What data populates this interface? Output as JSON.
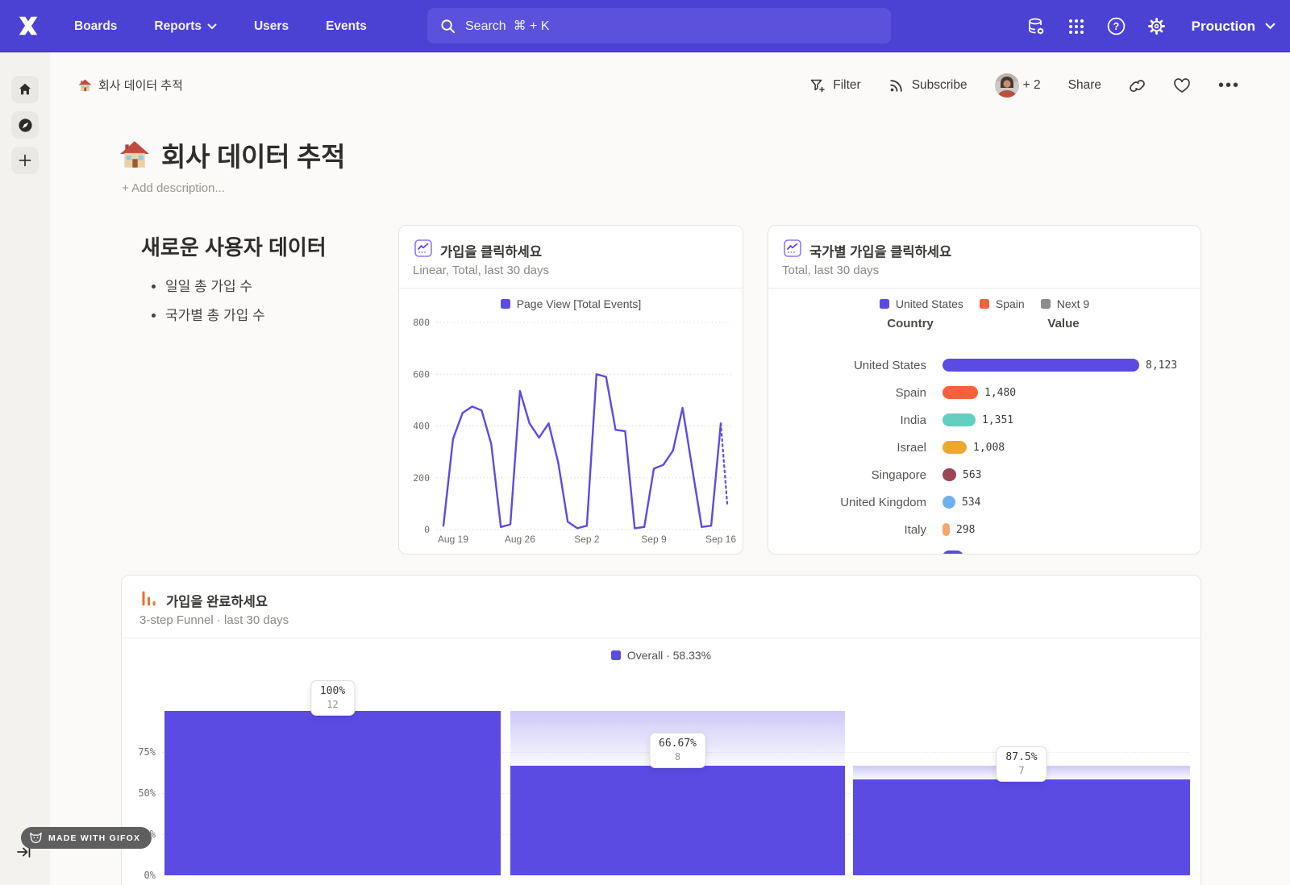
{
  "navbar": {
    "items": [
      "Boards",
      "Reports",
      "Users",
      "Events"
    ],
    "search_placeholder": "Search  ⌘ + K",
    "project": "Prouction"
  },
  "toolbar": {
    "breadcrumb": "회사 데이터 추적",
    "filter_label": "Filter",
    "subscribe_label": "Subscribe",
    "avatar_more": "+ 2",
    "share_label": "Share"
  },
  "page": {
    "title": "회사 데이터 추적",
    "add_description": "+ Add description..."
  },
  "text_widget": {
    "heading": "새로운 사용자 데이터",
    "bullets": [
      "일일 총 가입 수",
      "국가별 총 가입 수"
    ]
  },
  "chart_data": [
    {
      "type": "line",
      "title": "가입을 클릭하세요",
      "subtitle": "Linear, Total, last 30 days",
      "legend": [
        {
          "label": "Page View [Total Events]",
          "color": "#5C4BE3"
        }
      ],
      "x": [
        "Aug 18",
        "Aug 19",
        "Aug 20",
        "Aug 21",
        "Aug 22",
        "Aug 23",
        "Aug 24",
        "Aug 25",
        "Aug 26",
        "Aug 27",
        "Aug 28",
        "Aug 29",
        "Aug 30",
        "Aug 31",
        "Sep 1",
        "Sep 2",
        "Sep 3",
        "Sep 4",
        "Sep 5",
        "Sep 6",
        "Sep 7",
        "Sep 8",
        "Sep 9",
        "Sep 10",
        "Sep 11",
        "Sep 12",
        "Sep 13",
        "Sep 14",
        "Sep 15",
        "Sep 16"
      ],
      "values": [
        15,
        350,
        450,
        475,
        460,
        330,
        10,
        20,
        535,
        410,
        355,
        410,
        260,
        30,
        5,
        15,
        600,
        590,
        385,
        380,
        5,
        10,
        235,
        250,
        305,
        470,
        240,
        10,
        15,
        410
      ],
      "incomplete_tail_end": 100,
      "x_ticks": {
        "indices": [
          1,
          8,
          15,
          22,
          29
        ],
        "labels": [
          "Aug 19",
          "Aug 26",
          "Sep 2",
          "Sep 9",
          "Sep 16"
        ]
      },
      "y_ticks": [
        0,
        200,
        400,
        600,
        800
      ],
      "ylim": [
        0,
        800
      ],
      "grid": "horizontal-dotted",
      "legend_position": "top"
    },
    {
      "type": "bar",
      "title": "국가별 가입을 클릭하세요",
      "subtitle": "Total, last 30 days",
      "legend": [
        {
          "label": "United States",
          "color": "#5C4BE3"
        },
        {
          "label": "Spain",
          "color": "#F6603A"
        },
        {
          "label": "Next 9",
          "color": "#8C8C8C"
        }
      ],
      "columns": [
        "Country",
        "Value"
      ],
      "rows": [
        {
          "country": "United States",
          "value": 8123,
          "display": "8,123",
          "color": "#5C4BE3"
        },
        {
          "country": "Spain",
          "value": 1480,
          "display": "1,480",
          "color": "#F6603A"
        },
        {
          "country": "India",
          "value": 1351,
          "display": "1,351",
          "color": "#63CFC0"
        },
        {
          "country": "Israel",
          "value": 1008,
          "display": "1,008",
          "color": "#EDA92F"
        },
        {
          "country": "Singapore",
          "value": 563,
          "display": "563",
          "color": "#9E4458"
        },
        {
          "country": "United Kingdom",
          "value": 534,
          "display": "534",
          "color": "#6FB0F0"
        },
        {
          "country": "Italy",
          "value": 298,
          "display": "298",
          "color": "#F6A46C"
        },
        {
          "country": "",
          "value": null,
          "display": "",
          "color": "#5C4BE3",
          "clipped": true
        }
      ],
      "xmax": 8123
    },
    {
      "type": "funnel",
      "title": "가입을 완료하세요",
      "subtitle": "3-step Funnel · last 30 days",
      "legend": "Overall · 58.33%",
      "color": "#5C4BE3",
      "y_ticks": [
        "75%",
        "50%",
        "25%",
        "0%"
      ],
      "steps": [
        {
          "overall_pct": 100,
          "label": "100%",
          "count": "12",
          "ghost_from": null
        },
        {
          "overall_pct": 66.67,
          "label": "66.67%",
          "count": "8",
          "ghost_from": 100
        },
        {
          "overall_pct": 58.33,
          "label": "87.5%",
          "count": "7",
          "ghost_from": 66.67
        }
      ]
    }
  ],
  "badge": {
    "label": "MADE WITH GIFOX"
  }
}
